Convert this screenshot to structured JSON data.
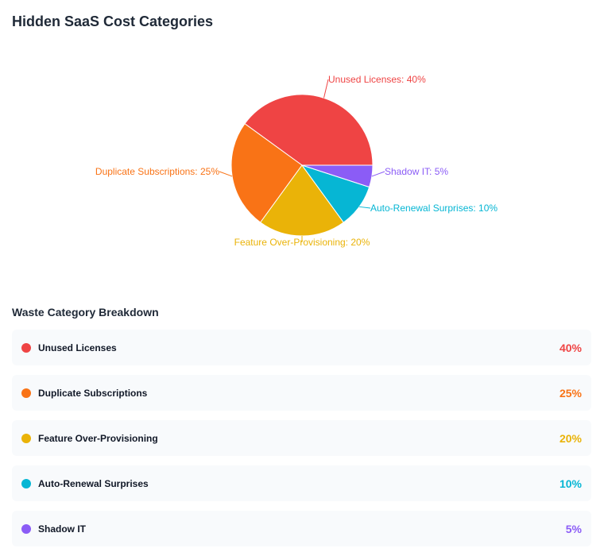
{
  "title": "Hidden SaaS Cost Categories",
  "breakdown": {
    "title": "Waste Category Breakdown"
  },
  "chart_data": {
    "type": "pie",
    "title": "Hidden SaaS Cost Categories",
    "slices": [
      {
        "label": "Unused Licenses",
        "value": 40,
        "color": "#ef4444",
        "label_text": "Unused Licenses: 40%",
        "pct": "40%"
      },
      {
        "label": "Duplicate Subscriptions",
        "value": 25,
        "color": "#f97316",
        "label_text": "Duplicate Subscriptions: 25%",
        "pct": "25%"
      },
      {
        "label": "Feature Over-Provisioning",
        "value": 20,
        "color": "#eab308",
        "label_text": "Feature Over-Provisioning: 20%",
        "pct": "20%"
      },
      {
        "label": "Auto-Renewal Surprises",
        "value": 10,
        "color": "#06b6d4",
        "label_text": "Auto-Renewal Surprises: 10%",
        "pct": "10%"
      },
      {
        "label": "Shadow IT",
        "value": 5,
        "color": "#8b5cf6",
        "label_text": "Shadow IT: 5%",
        "pct": "5%"
      }
    ]
  }
}
